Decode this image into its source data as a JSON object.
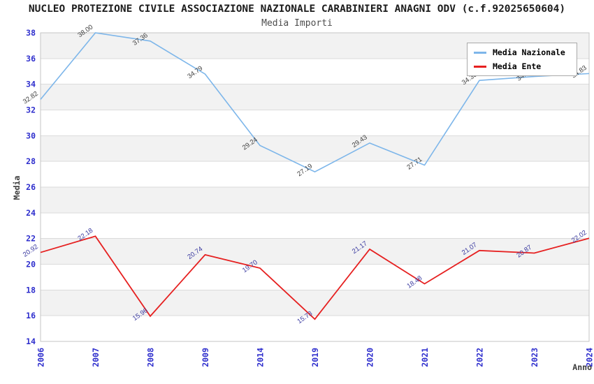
{
  "header": {
    "title": "NUCLEO PROTEZIONE CIVILE ASSOCIAZIONE NAZIONALE CARABINIERI ANAGNI ODV (c.f.92025650604)",
    "subtitle": "Media Importi"
  },
  "chart_data": {
    "type": "line",
    "title": "NUCLEO PROTEZIONE CIVILE ASSOCIAZIONE NAZIONALE CARABINIERI ANAGNI ODV (c.f.92025650604)",
    "subtitle": "Media Importi",
    "xlabel": "Anno",
    "ylabel": "Media",
    "categories": [
      "2006",
      "2007",
      "2008",
      "2009",
      "2014",
      "2019",
      "2020",
      "2021",
      "2022",
      "2023",
      "2024"
    ],
    "ylim": [
      14,
      38
    ],
    "ytick_step": 2,
    "grid": "horizontal, alternating gray bands",
    "legend_position": "top-right",
    "axis_tick_color": "#2e2ecd",
    "band_color": "#f2f2f2",
    "gridline_color": "#dbdbdb",
    "border_color": "#c6c6c6",
    "series": [
      {
        "name": "Media Nazionale",
        "color": "#7db6ea",
        "label_color": "#3f3f3f",
        "values": [
          32.82,
          38.0,
          37.36,
          34.79,
          29.24,
          27.19,
          29.43,
          27.71,
          34.3,
          34.6,
          34.83
        ]
      },
      {
        "name": "Media Ente",
        "color": "#e62020",
        "label_color": "#3a3aa0",
        "values": [
          20.92,
          22.18,
          15.96,
          20.74,
          19.7,
          15.73,
          21.17,
          18.48,
          21.07,
          20.87,
          22.02
        ]
      }
    ]
  }
}
